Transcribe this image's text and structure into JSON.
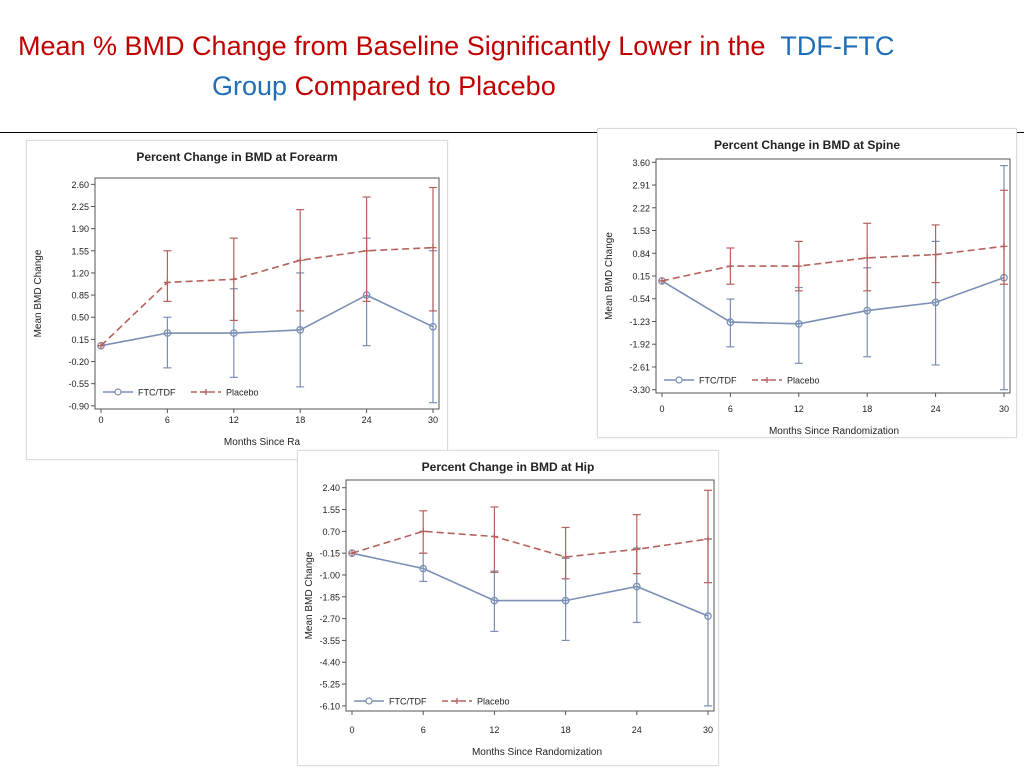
{
  "slide": {
    "title_part1": "Mean % BMD Change from Baseline Significantly Lower in the",
    "title_part2": "TDF-FTC",
    "title_part3": "Group",
    "title_part4": "Compared to Placebo",
    "colors": {
      "red": "#c00000",
      "blue": "#1f6fb8"
    }
  },
  "chart_data": [
    {
      "type": "line",
      "id": "forearm",
      "title": "Percent Change in BMD at Forearm",
      "xlabel": "Months Since Randomization",
      "xlabel_visible": "Months Since Ra",
      "ylabel": "Mean BMD Change",
      "x": [
        0,
        6,
        12,
        18,
        24,
        30
      ],
      "yticks": [
        2.6,
        2.25,
        1.9,
        1.55,
        1.2,
        0.85,
        0.5,
        0.15,
        -0.2,
        -0.55,
        -0.9
      ],
      "ytick_labels": [
        "2.60",
        "2.25",
        "1.90",
        "1.55",
        "1.20",
        "0.85",
        "0.50",
        "0.15",
        "-0.20",
        "-0.55",
        "-0.90"
      ],
      "ylim": [
        -0.95,
        2.7
      ],
      "series": [
        {
          "name": "FTC/TDF",
          "color": "#7b8fb5",
          "dash": false,
          "marker": "circle",
          "values": [
            0.05,
            0.25,
            0.25,
            0.3,
            0.85,
            0.35
          ],
          "lower": [
            0.05,
            -0.3,
            -0.45,
            -0.6,
            0.05,
            -0.85
          ],
          "upper": [
            0.05,
            0.5,
            0.95,
            1.2,
            1.75,
            1.55
          ]
        },
        {
          "name": "Placebo",
          "color": "#b5625c",
          "dash": true,
          "marker": "plus",
          "values": [
            0.05,
            1.05,
            1.1,
            1.4,
            1.55,
            1.6
          ],
          "lower": [
            0.05,
            0.75,
            0.45,
            0.6,
            0.75,
            0.6
          ],
          "upper": [
            0.05,
            1.55,
            1.75,
            2.2,
            2.4,
            2.55
          ]
        }
      ]
    },
    {
      "type": "line",
      "id": "spine",
      "title": "Percent Change in BMD at Spine",
      "xlabel": "Months Since Randomization",
      "ylabel": "Mean BMD Change",
      "x": [
        0,
        6,
        12,
        18,
        24,
        30
      ],
      "yticks": [
        3.6,
        2.91,
        2.22,
        1.53,
        0.84,
        0.15,
        -0.54,
        -1.23,
        -1.92,
        -2.61,
        -3.3
      ],
      "ytick_labels": [
        "3.60",
        "2.91",
        "2.22",
        "1.53",
        "0.84",
        "0.15",
        "-0.54",
        "-1.23",
        "-1.92",
        "-2.61",
        "-3.30"
      ],
      "ylim": [
        -3.4,
        3.7
      ],
      "series": [
        {
          "name": "FTC/TDF",
          "color": "#7b8fb5",
          "dash": false,
          "marker": "circle",
          "values": [
            0.0,
            -1.25,
            -1.3,
            -0.9,
            -0.65,
            0.1
          ],
          "lower": [
            0.0,
            -2.0,
            -2.5,
            -2.3,
            -2.55,
            -3.3
          ],
          "upper": [
            0.0,
            -0.55,
            -0.2,
            0.4,
            1.2,
            3.5
          ]
        },
        {
          "name": "Placebo",
          "color": "#b5625c",
          "dash": true,
          "marker": "plus",
          "values": [
            0.0,
            0.45,
            0.45,
            0.7,
            0.8,
            1.05
          ],
          "lower": [
            0.0,
            -0.1,
            -0.3,
            -0.3,
            -0.05,
            -0.1
          ],
          "upper": [
            0.0,
            1.0,
            1.2,
            1.75,
            1.7,
            2.75
          ]
        }
      ]
    },
    {
      "type": "line",
      "id": "hip",
      "title": "Percent Change in BMD at Hip",
      "xlabel": "Months Since Randomization",
      "ylabel": "Mean BMD Change",
      "x": [
        0,
        6,
        12,
        18,
        24,
        30
      ],
      "yticks": [
        2.4,
        1.55,
        0.7,
        -0.15,
        -1.0,
        -1.85,
        -2.7,
        -3.55,
        -4.4,
        -5.25,
        -6.1
      ],
      "ytick_labels": [
        "2.40",
        "1.55",
        "0.70",
        "-0.15",
        "-1.00",
        "-1.85",
        "-2.70",
        "-3.55",
        "-4.40",
        "-5.25",
        "-6.10"
      ],
      "ylim": [
        -6.3,
        2.7
      ],
      "series": [
        {
          "name": "FTC/TDF",
          "color": "#7b8fb5",
          "dash": false,
          "marker": "circle",
          "values": [
            -0.15,
            -0.75,
            -2.0,
            -2.0,
            -1.45,
            -2.6
          ],
          "lower": [
            -0.15,
            -1.25,
            -3.2,
            -3.55,
            -2.85,
            -6.1
          ],
          "upper": [
            -0.15,
            -0.15,
            -0.85,
            -0.35,
            0.05,
            0.4
          ]
        },
        {
          "name": "Placebo",
          "color": "#b5625c",
          "dash": true,
          "marker": "plus",
          "values": [
            -0.15,
            0.7,
            0.5,
            -0.3,
            0.0,
            0.4
          ],
          "lower": [
            -0.15,
            -0.15,
            -0.9,
            -1.15,
            -0.95,
            -1.3
          ],
          "upper": [
            -0.15,
            1.5,
            1.65,
            0.85,
            1.35,
            2.3
          ]
        }
      ]
    }
  ]
}
